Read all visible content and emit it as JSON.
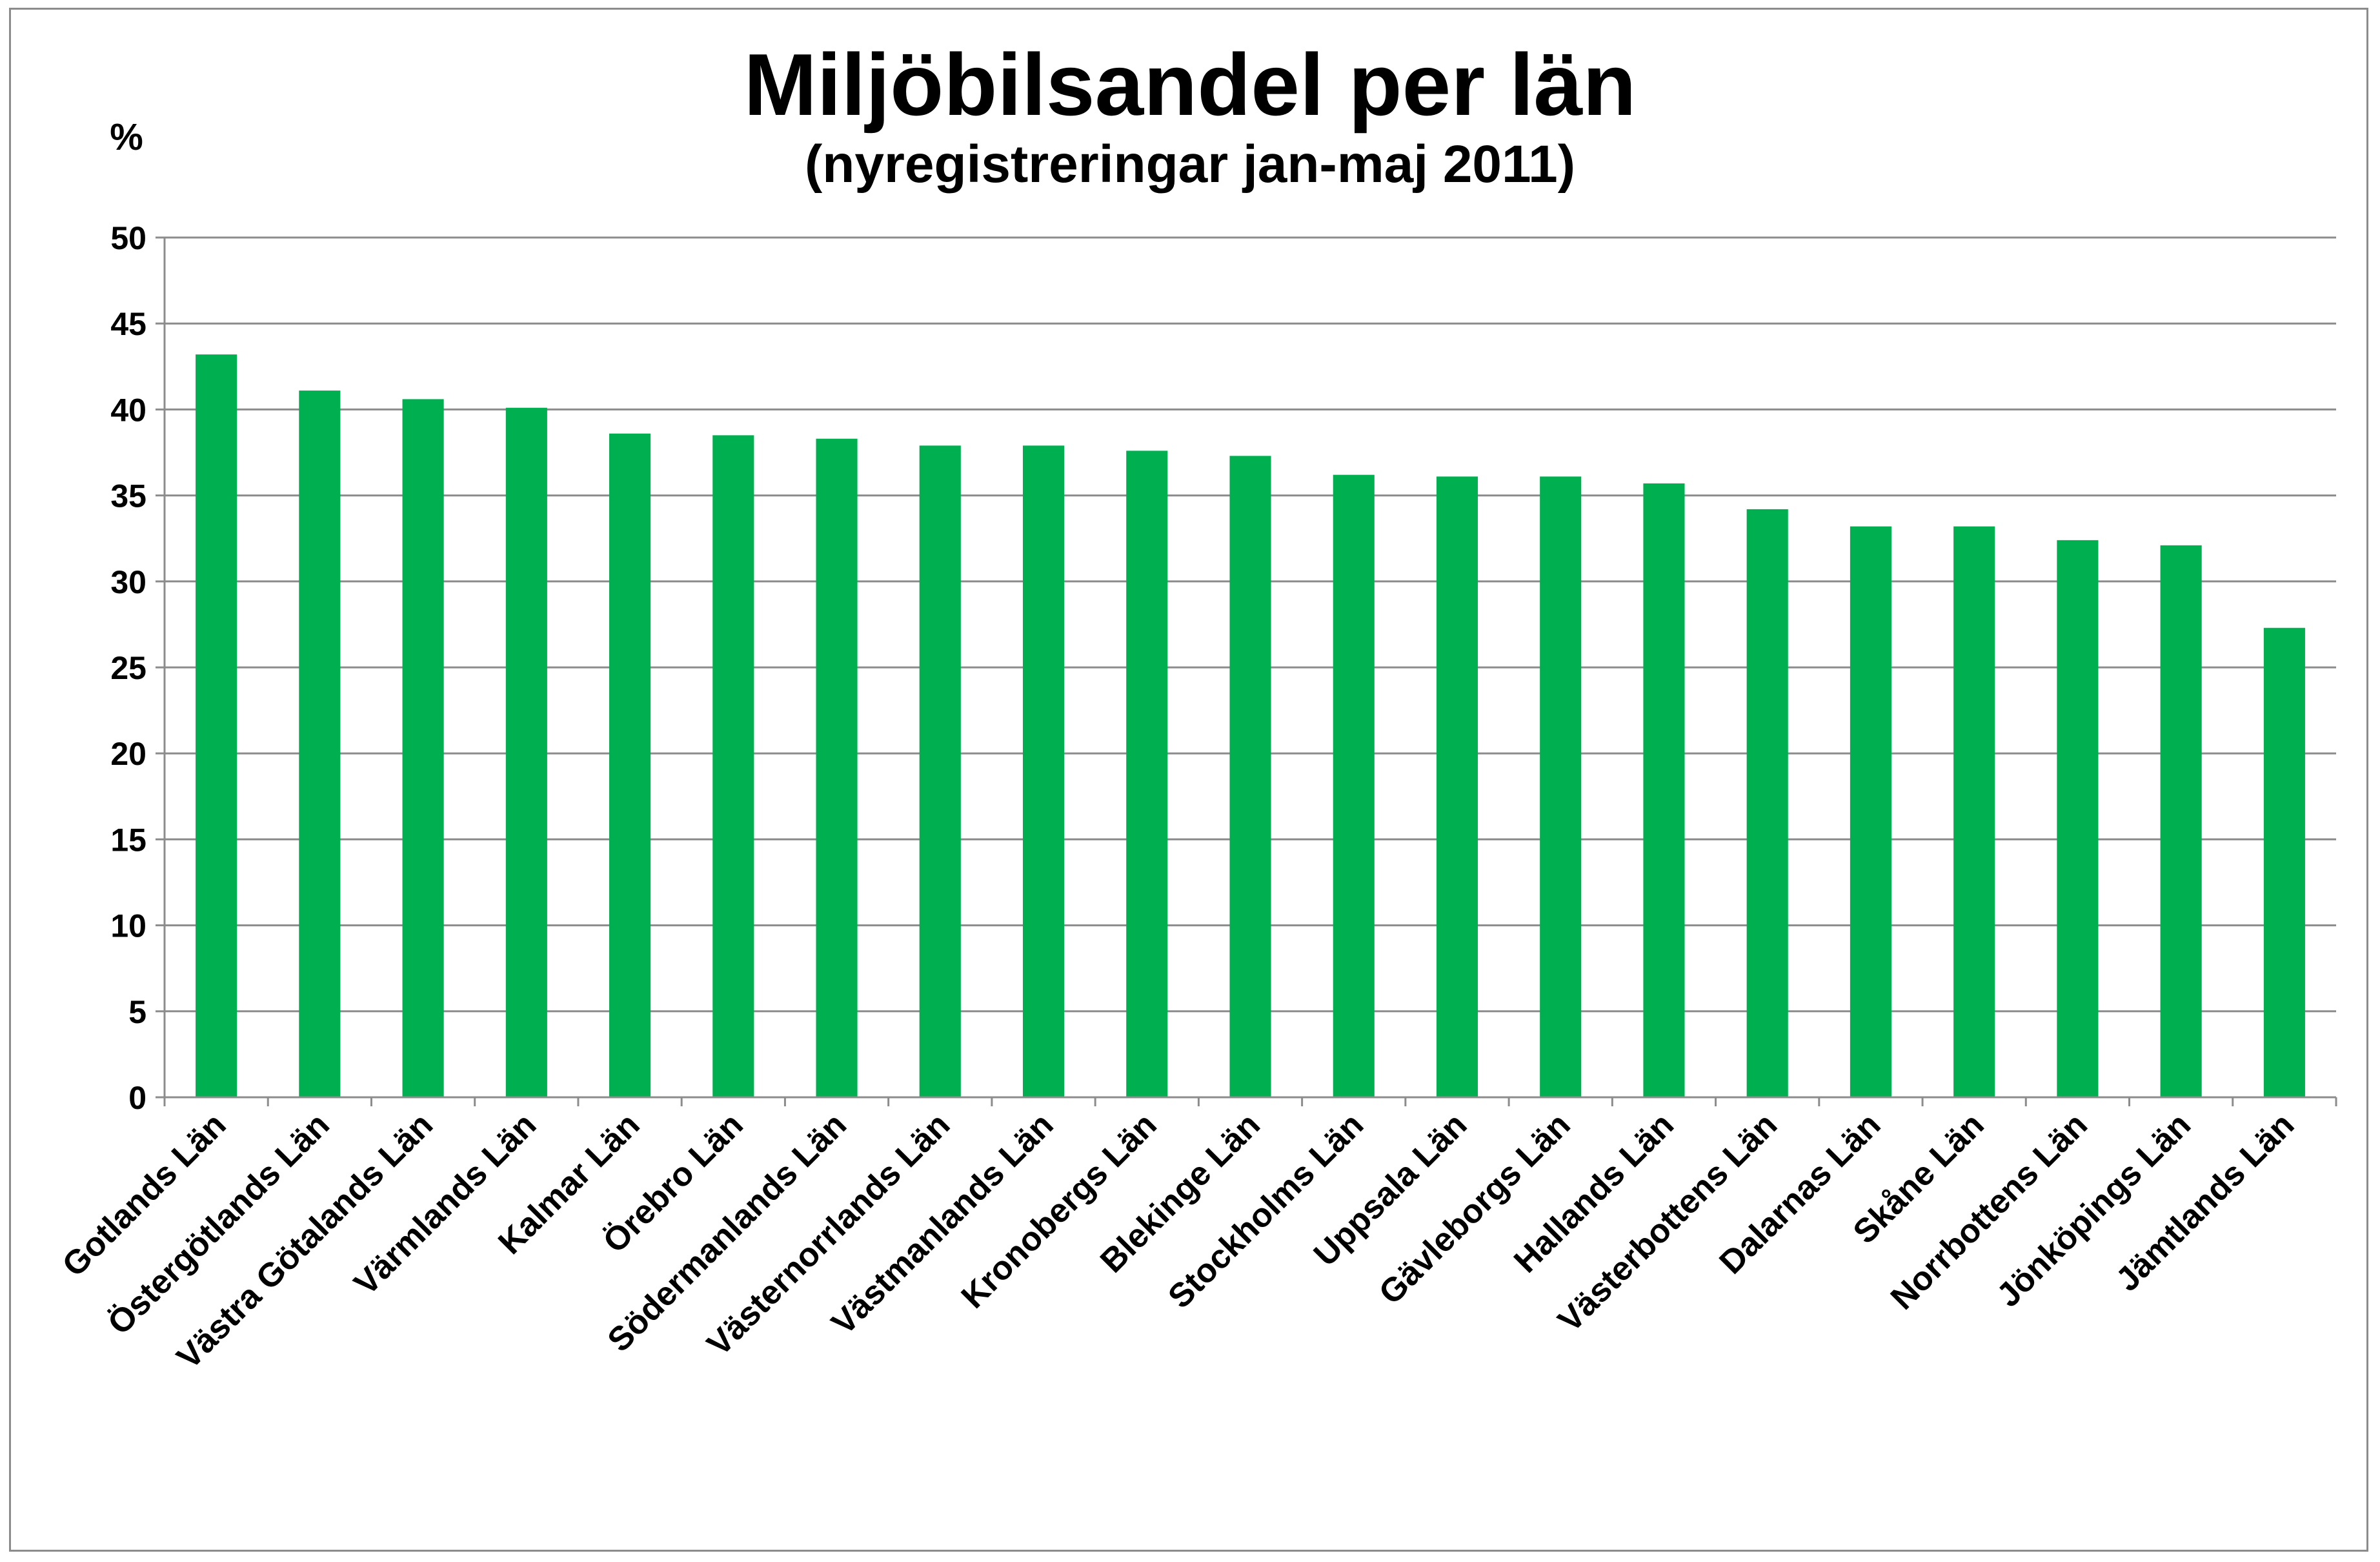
{
  "chart_data": {
    "type": "bar",
    "title": "Miljöbilsandel per län",
    "subtitle": "(nyregistreringar jan-maj 2011)",
    "ylabel": "%",
    "xlabel": "",
    "ylim": [
      0,
      50
    ],
    "yticks": [
      0,
      5,
      10,
      15,
      20,
      25,
      30,
      35,
      40,
      45,
      50
    ],
    "grid": true,
    "legend": "none",
    "bar_color": "#00b050",
    "categories": [
      "Gotlands Län",
      "Östergötlands Län",
      "Västra Götalands Län",
      "Värmlands Län",
      "Kalmar Län",
      "Örebro Län",
      "Södermanlands Län",
      "Västernorrlands Län",
      "Västmanlands Län",
      "Kronobergs Län",
      "Blekinge Län",
      "Stockholms Län",
      "Uppsala Län",
      "Gävleborgs Län",
      "Hallands Län",
      "Västerbottens Län",
      "Dalarnas Län",
      "Skåne Län",
      "Norrbottens Län",
      "Jönköpings Län",
      "Jämtlands Län"
    ],
    "values": [
      43.2,
      41.1,
      40.6,
      40.1,
      38.6,
      38.5,
      38.3,
      37.9,
      37.9,
      37.6,
      37.3,
      36.2,
      36.1,
      36.1,
      35.7,
      34.2,
      33.2,
      33.2,
      32.4,
      32.1,
      27.3
    ]
  }
}
